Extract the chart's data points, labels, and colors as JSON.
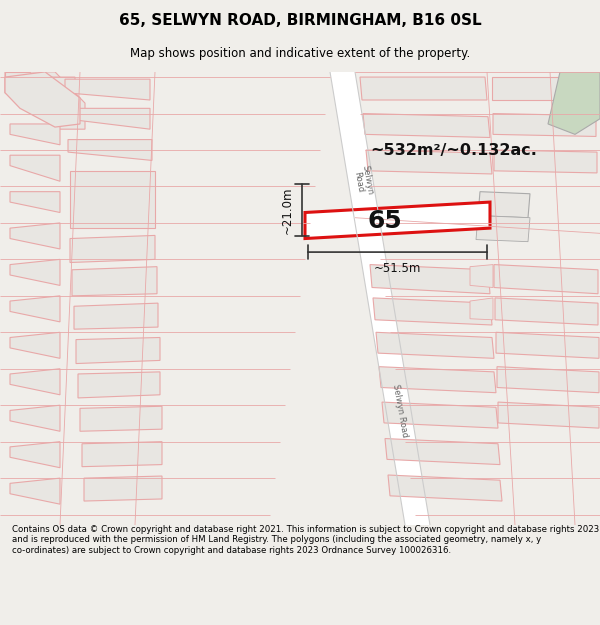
{
  "title": "65, SELWYN ROAD, BIRMINGHAM, B16 0SL",
  "subtitle": "Map shows position and indicative extent of the property.",
  "footer": "Contains OS data © Crown copyright and database right 2021. This information is subject to Crown copyright and database rights 2023 and is reproduced with the permission of HM Land Registry. The polygons (including the associated geometry, namely x, y co-ordinates) are subject to Crown copyright and database rights 2023 Ordnance Survey 100026316.",
  "area_label": "~532m²/~0.132ac.",
  "width_label": "~51.5m",
  "height_label": "~21.0m",
  "plot_number": "65",
  "bg_color": "#f0eeea",
  "map_bg": "#ffffff",
  "road_color": "#ffffff",
  "building_fill": "#e8e6e2",
  "building_stroke": "#e8a8a8",
  "highlight_fill": "#ffffff",
  "highlight_stroke": "#dd1111",
  "dim_line_color": "#333333",
  "road_label_color": "#666666",
  "road_line_color": "#bbbbbb",
  "pink_line_color": "#e8a8a8",
  "green_fill": "#c8d8c0",
  "green_stroke": "#aaaaaa"
}
